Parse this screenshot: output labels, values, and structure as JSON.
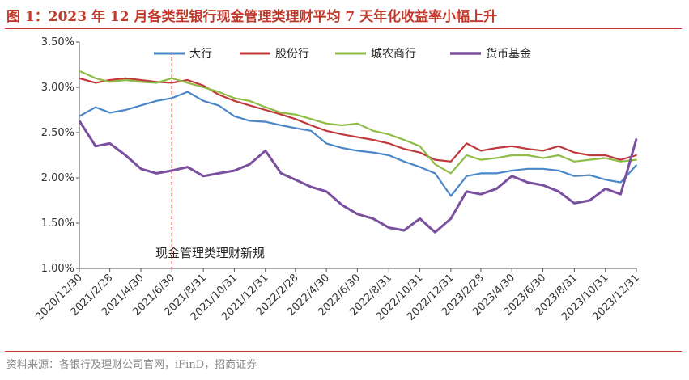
{
  "header": {
    "title": "图 1：2023 年 12 月各类型银行现金管理类理财平均 7 天年化收益率小幅上升"
  },
  "footer": {
    "source": "资料来源：各银行及理财公司官网，iFinD，招商证券"
  },
  "chart_data": {
    "type": "line",
    "title": "",
    "xlabel": "",
    "ylabel": "",
    "ylim": [
      1.0,
      3.5
    ],
    "yticks": [
      "1.00%",
      "1.50%",
      "2.00%",
      "2.50%",
      "3.00%",
      "3.50%"
    ],
    "ytick_values": [
      1.0,
      1.5,
      2.0,
      2.5,
      3.0,
      3.5
    ],
    "x_range": [
      "2020/12/30",
      "2023/12/31"
    ],
    "xticks": [
      "2020/12/30",
      "2021/2/28",
      "2021/4/30",
      "2021/6/30",
      "2021/8/31",
      "2021/10/31",
      "2021/12/31",
      "2022/2/28",
      "2022/4/30",
      "2022/6/30",
      "2022/8/31",
      "2022/10/31",
      "2022/12/31",
      "2023/2/28",
      "2023/4/30",
      "2023/6/30",
      "2023/8/31",
      "2023/10/31",
      "2023/12/31"
    ],
    "grid": false,
    "legend": "top",
    "annotation": {
      "text": "现金管理类理财新规",
      "date": "2021/6/30"
    },
    "x": [
      "2020/12/30",
      "2021/1/31",
      "2021/2/28",
      "2021/3/31",
      "2021/4/30",
      "2021/5/31",
      "2021/6/30",
      "2021/7/31",
      "2021/8/31",
      "2021/9/30",
      "2021/10/31",
      "2021/11/30",
      "2021/12/31",
      "2022/1/31",
      "2022/2/28",
      "2022/3/31",
      "2022/4/30",
      "2022/5/31",
      "2022/6/30",
      "2022/7/31",
      "2022/8/31",
      "2022/9/30",
      "2022/10/31",
      "2022/11/30",
      "2022/12/31",
      "2023/1/31",
      "2023/2/28",
      "2023/3/31",
      "2023/4/30",
      "2023/5/31",
      "2023/6/30",
      "2023/7/31",
      "2023/8/31",
      "2023/9/30",
      "2023/10/31",
      "2023/11/30",
      "2023/12/31"
    ],
    "series": [
      {
        "name": "大行",
        "color": "#4a86c8",
        "values": [
          2.68,
          2.78,
          2.72,
          2.75,
          2.8,
          2.85,
          2.88,
          2.95,
          2.85,
          2.8,
          2.68,
          2.63,
          2.62,
          2.58,
          2.55,
          2.52,
          2.38,
          2.33,
          2.3,
          2.28,
          2.25,
          2.18,
          2.12,
          2.05,
          1.8,
          2.02,
          2.05,
          2.05,
          2.08,
          2.1,
          2.1,
          2.08,
          2.02,
          2.03,
          1.98,
          1.95,
          2.14
        ]
      },
      {
        "name": "股份行",
        "color": "#c0393b",
        "values": [
          3.1,
          3.05,
          3.08,
          3.1,
          3.08,
          3.06,
          3.05,
          3.08,
          3.02,
          2.92,
          2.85,
          2.8,
          2.75,
          2.7,
          2.65,
          2.58,
          2.52,
          2.48,
          2.45,
          2.42,
          2.38,
          2.32,
          2.28,
          2.2,
          2.18,
          2.38,
          2.3,
          2.33,
          2.35,
          2.32,
          2.3,
          2.35,
          2.28,
          2.25,
          2.25,
          2.2,
          2.25
        ]
      },
      {
        "name": "城农商行",
        "color": "#8fbc45",
        "values": [
          3.18,
          3.1,
          3.06,
          3.08,
          3.06,
          3.05,
          3.1,
          3.05,
          3.0,
          2.95,
          2.88,
          2.85,
          2.78,
          2.72,
          2.7,
          2.65,
          2.6,
          2.58,
          2.6,
          2.52,
          2.48,
          2.42,
          2.35,
          2.15,
          2.05,
          2.25,
          2.2,
          2.22,
          2.25,
          2.25,
          2.22,
          2.25,
          2.18,
          2.2,
          2.22,
          2.18,
          2.2
        ]
      },
      {
        "name": "货币基金",
        "color": "#7b4fa0",
        "values": [
          2.63,
          2.35,
          2.38,
          2.25,
          2.1,
          2.05,
          2.08,
          2.12,
          2.02,
          2.05,
          2.08,
          2.15,
          2.3,
          2.05,
          1.98,
          1.9,
          1.85,
          1.7,
          1.6,
          1.55,
          1.45,
          1.42,
          1.55,
          1.4,
          1.55,
          1.85,
          1.82,
          1.88,
          2.02,
          1.95,
          1.92,
          1.85,
          1.72,
          1.75,
          1.88,
          1.82,
          2.43
        ]
      }
    ]
  }
}
